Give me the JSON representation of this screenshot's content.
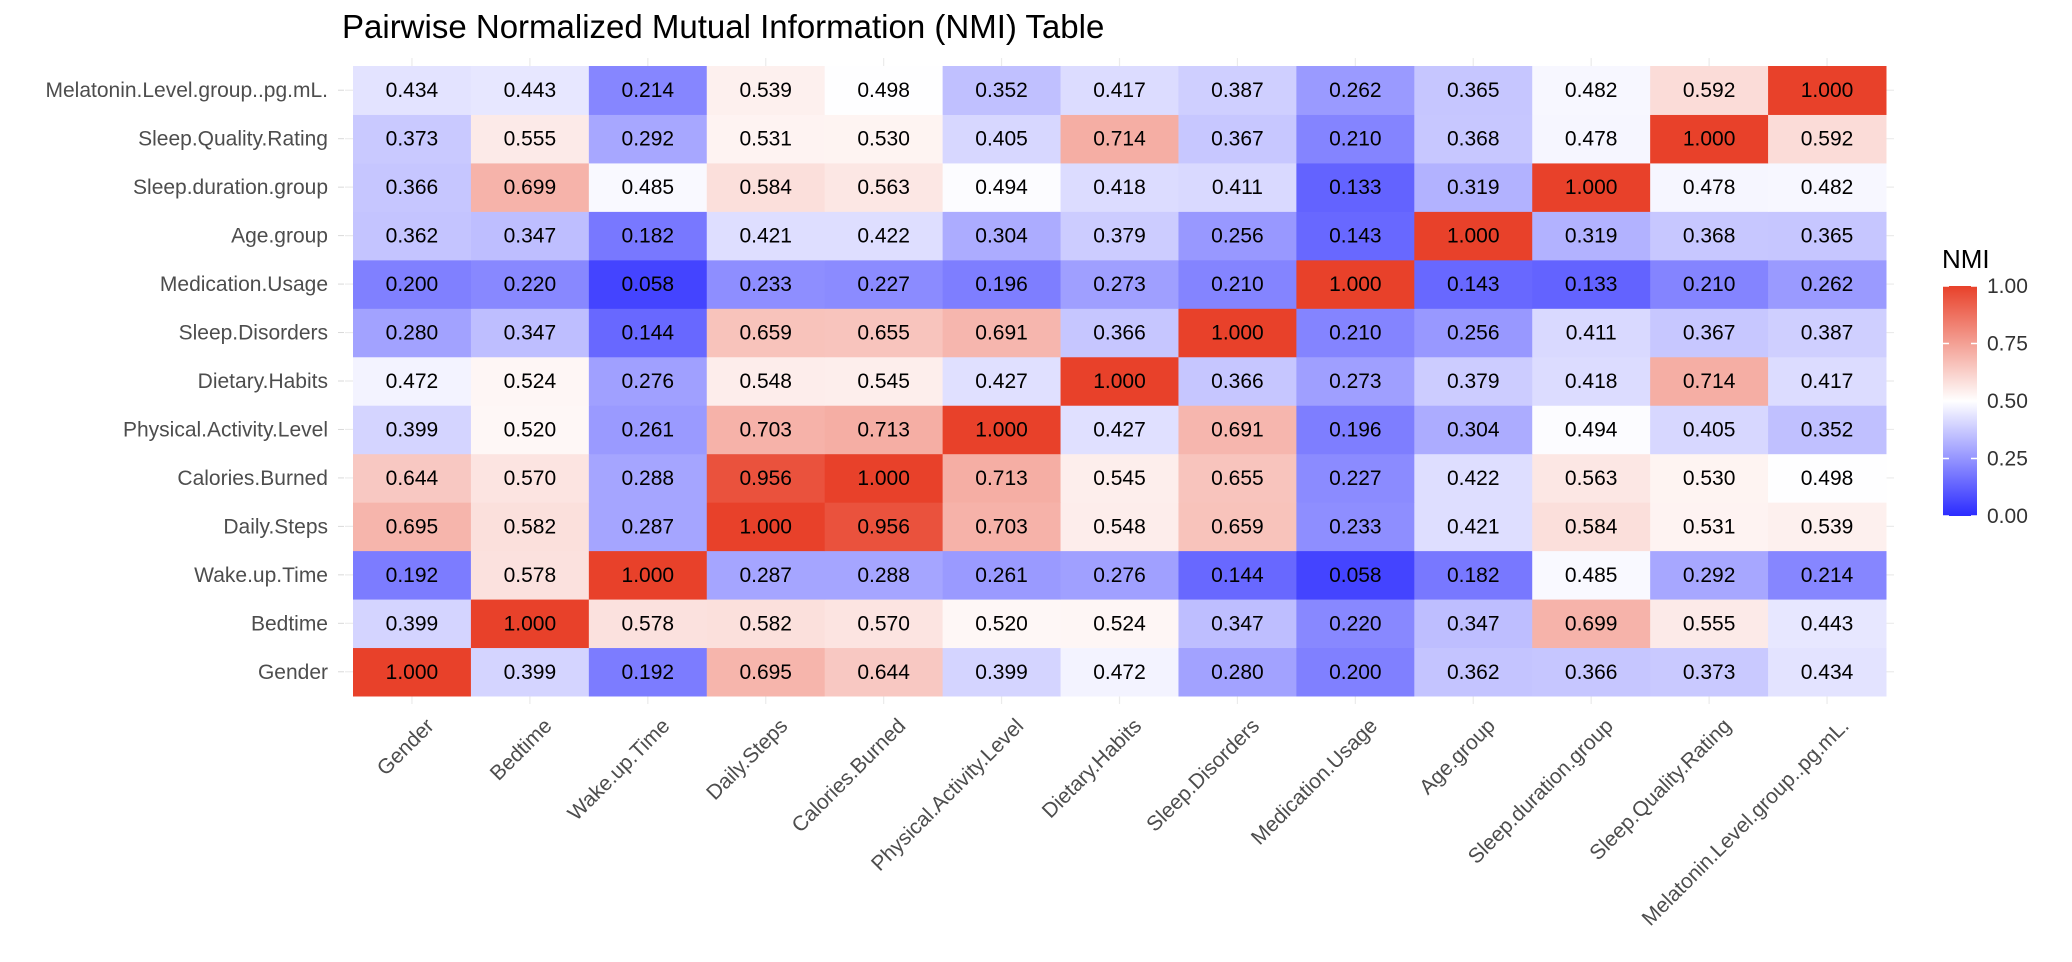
{
  "chart_data": {
    "type": "heatmap",
    "title": "Pairwise Normalized Mutual Information (NMI) Table",
    "variables": [
      "Gender",
      "Bedtime",
      "Wake.up.Time",
      "Daily.Steps",
      "Calories.Burned",
      "Physical.Activity.Level",
      "Dietary.Habits",
      "Sleep.Disorders",
      "Medication.Usage",
      "Age.group",
      "Sleep.duration.group",
      "Sleep.Quality.Rating",
      "Melatonin.Level.group..pg.mL."
    ],
    "values": [
      [
        "1.000",
        "0.399",
        "0.192",
        "0.695",
        "0.644",
        "0.399",
        "0.472",
        "0.280",
        "0.200",
        "0.362",
        "0.366",
        "0.373",
        "0.434"
      ],
      [
        "0.399",
        "1.000",
        "0.578",
        "0.582",
        "0.570",
        "0.520",
        "0.524",
        "0.347",
        "0.220",
        "0.347",
        "0.699",
        "0.555",
        "0.443"
      ],
      [
        "0.192",
        "0.578",
        "1.000",
        "0.287",
        "0.288",
        "0.261",
        "0.276",
        "0.144",
        "0.058",
        "0.182",
        "0.485",
        "0.292",
        "0.214"
      ],
      [
        "0.695",
        "0.582",
        "0.287",
        "1.000",
        "0.956",
        "0.703",
        "0.548",
        "0.659",
        "0.233",
        "0.421",
        "0.584",
        "0.531",
        "0.539"
      ],
      [
        "0.644",
        "0.570",
        "0.288",
        "0.956",
        "1.000",
        "0.713",
        "0.545",
        "0.655",
        "0.227",
        "0.422",
        "0.563",
        "0.530",
        "0.498"
      ],
      [
        "0.399",
        "0.520",
        "0.261",
        "0.703",
        "0.713",
        "1.000",
        "0.427",
        "0.691",
        "0.196",
        "0.304",
        "0.494",
        "0.405",
        "0.352"
      ],
      [
        "0.472",
        "0.524",
        "0.276",
        "0.548",
        "0.545",
        "0.427",
        "1.000",
        "0.366",
        "0.273",
        "0.379",
        "0.418",
        "0.714",
        "0.417"
      ],
      [
        "0.280",
        "0.347",
        "0.144",
        "0.659",
        "0.655",
        "0.691",
        "0.366",
        "1.000",
        "0.210",
        "0.256",
        "0.411",
        "0.367",
        "0.387"
      ],
      [
        "0.200",
        "0.220",
        "0.058",
        "0.233",
        "0.227",
        "0.196",
        "0.273",
        "0.210",
        "1.000",
        "0.143",
        "0.133",
        "0.210",
        "0.262"
      ],
      [
        "0.362",
        "0.347",
        "0.182",
        "0.421",
        "0.422",
        "0.304",
        "0.379",
        "0.256",
        "0.143",
        "1.000",
        "0.319",
        "0.368",
        "0.365"
      ],
      [
        "0.366",
        "0.699",
        "0.485",
        "0.584",
        "0.563",
        "0.494",
        "0.418",
        "0.411",
        "0.133",
        "0.319",
        "1.000",
        "0.478",
        "0.482"
      ],
      [
        "0.373",
        "0.555",
        "0.292",
        "0.531",
        "0.530",
        "0.405",
        "0.714",
        "0.367",
        "0.210",
        "0.368",
        "0.478",
        "1.000",
        "0.592"
      ],
      [
        "0.434",
        "0.443",
        "0.214",
        "0.539",
        "0.498",
        "0.352",
        "0.417",
        "0.387",
        "0.262",
        "0.365",
        "0.482",
        "0.592",
        "1.000"
      ]
    ],
    "legend": {
      "title": "NMI",
      "placement": "right",
      "ticks": [
        "1.00",
        "0.75",
        "0.50",
        "0.25",
        "0.00"
      ],
      "range": [
        0,
        1
      ],
      "colors": {
        "low": "#2b2bff",
        "mid": "#ffffff",
        "high": "#e8412a"
      },
      "midpoint": 0.5
    },
    "grid": true
  }
}
